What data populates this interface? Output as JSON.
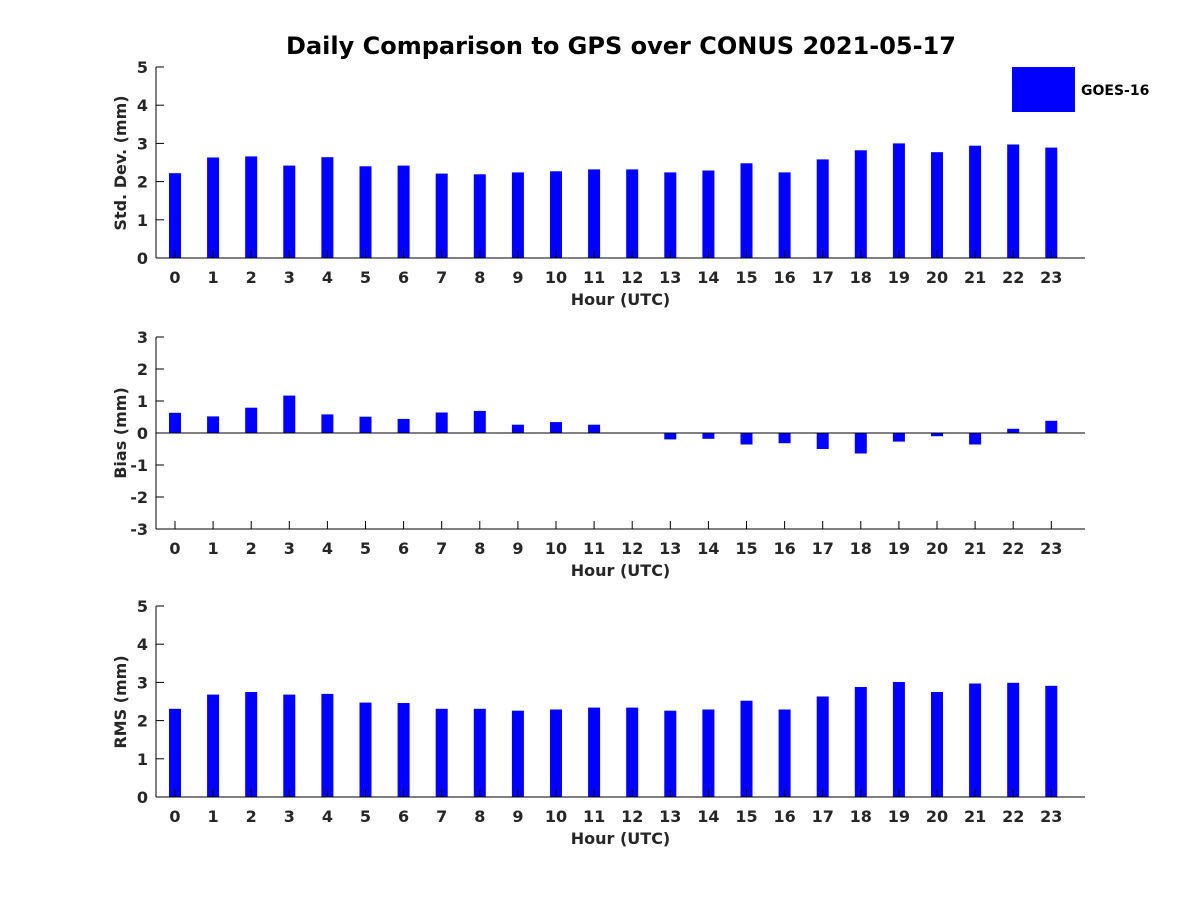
{
  "figure_title": "Daily Comparison to GPS over CONUS 2021-05-17",
  "legend": {
    "label": "GOES-16",
    "color": "#0000ff"
  },
  "chart_data": [
    {
      "type": "bar",
      "name": "std-dev",
      "title": "Daily Comparison to GPS over CONUS 2021-05-17",
      "xlabel": "Hour (UTC)",
      "ylabel": "Std. Dev. (mm)",
      "ylim": [
        0,
        5
      ],
      "yticks": [
        "0",
        "1",
        "2",
        "3",
        "4",
        "5"
      ],
      "categories": [
        "0",
        "1",
        "2",
        "3",
        "4",
        "5",
        "6",
        "7",
        "8",
        "9",
        "10",
        "11",
        "12",
        "13",
        "14",
        "15",
        "16",
        "17",
        "18",
        "19",
        "20",
        "21",
        "22",
        "23"
      ],
      "series": [
        {
          "name": "GOES-16",
          "color": "#0000ff",
          "values": [
            2.22,
            2.63,
            2.66,
            2.42,
            2.64,
            2.4,
            2.42,
            2.21,
            2.19,
            2.24,
            2.27,
            2.32,
            2.32,
            2.24,
            2.29,
            2.48,
            2.24,
            2.58,
            2.82,
            3.0,
            2.77,
            2.94,
            2.97,
            2.89
          ]
        }
      ]
    },
    {
      "type": "bar",
      "name": "bias",
      "xlabel": "Hour (UTC)",
      "ylabel": "Bias (mm)",
      "ylim": [
        -3,
        3
      ],
      "yticks": [
        "-3",
        "-2",
        "-1",
        "0",
        "1",
        "2",
        "3"
      ],
      "categories": [
        "0",
        "1",
        "2",
        "3",
        "4",
        "5",
        "6",
        "7",
        "8",
        "9",
        "10",
        "11",
        "12",
        "13",
        "14",
        "15",
        "16",
        "17",
        "18",
        "19",
        "20",
        "21",
        "22",
        "23"
      ],
      "series": [
        {
          "name": "GOES-16",
          "color": "#0000ff",
          "values": [
            0.63,
            0.52,
            0.79,
            1.17,
            0.58,
            0.51,
            0.44,
            0.64,
            0.69,
            0.26,
            0.34,
            0.26,
            0.0,
            -0.2,
            -0.18,
            -0.36,
            -0.32,
            -0.5,
            -0.64,
            -0.27,
            -0.1,
            -0.36,
            0.13,
            0.38
          ]
        }
      ]
    },
    {
      "type": "bar",
      "name": "rms",
      "xlabel": "Hour (UTC)",
      "ylabel": "RMS (mm)",
      "ylim": [
        0,
        5
      ],
      "yticks": [
        "0",
        "1",
        "2",
        "3",
        "4",
        "5"
      ],
      "categories": [
        "0",
        "1",
        "2",
        "3",
        "4",
        "5",
        "6",
        "7",
        "8",
        "9",
        "10",
        "11",
        "12",
        "13",
        "14",
        "15",
        "16",
        "17",
        "18",
        "19",
        "20",
        "21",
        "22",
        "23"
      ],
      "series": [
        {
          "name": "GOES-16",
          "color": "#0000ff",
          "values": [
            2.31,
            2.68,
            2.75,
            2.68,
            2.7,
            2.47,
            2.46,
            2.31,
            2.31,
            2.26,
            2.29,
            2.34,
            2.34,
            2.26,
            2.29,
            2.52,
            2.29,
            2.63,
            2.88,
            3.01,
            2.75,
            2.97,
            2.99,
            2.91
          ]
        }
      ]
    }
  ]
}
